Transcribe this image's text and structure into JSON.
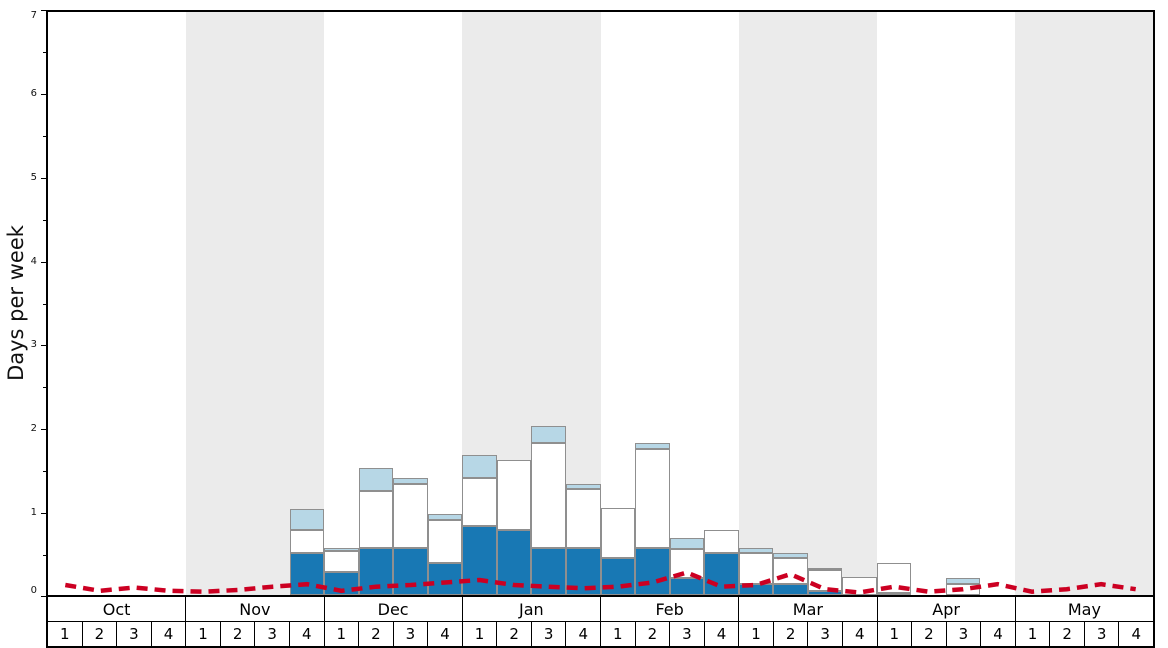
{
  "chart_data": {
    "type": "bar",
    "subtype": "stacked-bar-with-dashed-line",
    "title": "",
    "xlabel": "",
    "ylabel": "Days per week",
    "ylim": [
      0,
      7
    ],
    "yticks": [
      0,
      1,
      2,
      3,
      4,
      5,
      6,
      7
    ],
    "grid": false,
    "legend": "none",
    "band_color": "#ebebeb",
    "months": [
      "Oct",
      "Nov",
      "Dec",
      "Jan",
      "Feb",
      "Mar",
      "Apr",
      "May"
    ],
    "week_labels": [
      "1",
      "2",
      "3",
      "4"
    ],
    "x_order": "Oct week1 through May week4, 32 weekly bins",
    "series": [
      {
        "name": "dark-blue-bars",
        "color": "#1878b4",
        "values": [
          0,
          0,
          0,
          0,
          0,
          0,
          0,
          0.5,
          0.28,
          0.57,
          0.57,
          0.38,
          0.83,
          0.78,
          0.57,
          0.57,
          0.45,
          0.57,
          0.2,
          0.5,
          0.13,
          0.13,
          0.05,
          0,
          0.03,
          0,
          0,
          0,
          0,
          0,
          0,
          0
        ]
      },
      {
        "name": "white-bars",
        "color": "#ffffff",
        "values": [
          0,
          0,
          0,
          0,
          0,
          0,
          0,
          0.28,
          0.25,
          0.68,
          0.76,
          0.52,
          0.58,
          0.84,
          1.26,
          0.7,
          0.6,
          1.18,
          0.35,
          0.28,
          0.37,
          0.32,
          0.25,
          0.22,
          0.35,
          0,
          0.13,
          0,
          0,
          0,
          0,
          0
        ]
      },
      {
        "name": "light-blue-bars",
        "color": "#b7d7e6",
        "values": [
          0,
          0,
          0,
          0,
          0,
          0,
          0,
          0.25,
          0.04,
          0.28,
          0.07,
          0.07,
          0.27,
          0,
          0.2,
          0.06,
          0,
          0.07,
          0.13,
          0,
          0.07,
          0.05,
          0.03,
          0,
          0,
          0,
          0.08,
          0,
          0,
          0,
          0,
          0
        ]
      }
    ],
    "line": {
      "name": "red-dashed-line",
      "color": "#cc0022",
      "style": "dashed",
      "dash": [
        11,
        7
      ],
      "width": 4.5,
      "values": [
        0.12,
        0.05,
        0.09,
        0.05,
        0.04,
        0.06,
        0.1,
        0.13,
        0.05,
        0.1,
        0.12,
        0.15,
        0.18,
        0.12,
        0.1,
        0.08,
        0.1,
        0.15,
        0.27,
        0.1,
        0.12,
        0.25,
        0.07,
        0.03,
        0.1,
        0.04,
        0.07,
        0.13,
        0.04,
        0.07,
        0.13,
        0.07
      ]
    }
  }
}
